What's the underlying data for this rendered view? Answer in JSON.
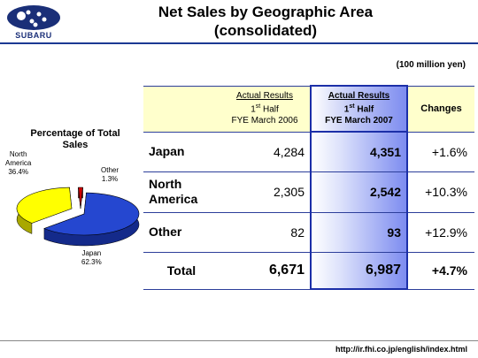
{
  "header": {
    "logo_text": "SUBARU",
    "title_line1": "Net Sales by Geographic Area",
    "title_line2": "(consolidated)"
  },
  "unit_note": "(100 million yen)",
  "pie": {
    "title_line1": "Percentage of Total",
    "title_line2": "Sales"
  },
  "table": {
    "col1_line1": "Actual Results",
    "col1_line2_base": "1",
    "col1_line2_sup": "st",
    "col1_line2_rest": " Half",
    "col1_line3": "FYE March 2006",
    "col2_line1": "Actual Results",
    "col2_line2_base": "1",
    "col2_line2_sup": "st",
    "col2_line2_rest": " Half",
    "col2_line3": "FYE March 2007",
    "col3": "Changes",
    "rows": [
      {
        "label": "Japan",
        "prev": "4,284",
        "curr": "4,351",
        "change": "+1.6%"
      },
      {
        "label": "North America",
        "prev": "2,305",
        "curr": "2,542",
        "change": "+10.3%"
      },
      {
        "label": "Other",
        "prev": "82",
        "curr": "93",
        "change": "+12.9%"
      },
      {
        "label": "Total",
        "prev": "6,671",
        "curr": "6,987",
        "change": "+4.7%"
      }
    ]
  },
  "footer_url": "http://ir.fhi.co.jp/english/index.html",
  "chart_data": [
    {
      "type": "pie",
      "title": "Percentage of Total Sales",
      "categories": [
        "Japan",
        "North America",
        "Other"
      ],
      "values": [
        62.3,
        36.4,
        1.3
      ],
      "labels": [
        "Japan\n62.3%",
        "North\nAmerica\n36.4%",
        "Other\n1.3%"
      ],
      "colors": [
        "#2547d0",
        "#ffff00",
        "#cc0000"
      ]
    },
    {
      "type": "table",
      "columns": [
        "Actual Results 1st Half FYE March 2006",
        "Actual Results 1st Half FYE March 2007",
        "Changes"
      ],
      "rows": [
        "Japan",
        "North America",
        "Other",
        "Total"
      ],
      "values": [
        [
          4284,
          4351,
          1.6
        ],
        [
          2305,
          2542,
          10.3
        ],
        [
          82,
          93,
          12.9
        ],
        [
          6671,
          6987,
          4.7
        ]
      ],
      "unit": "(100 million yen)"
    }
  ]
}
